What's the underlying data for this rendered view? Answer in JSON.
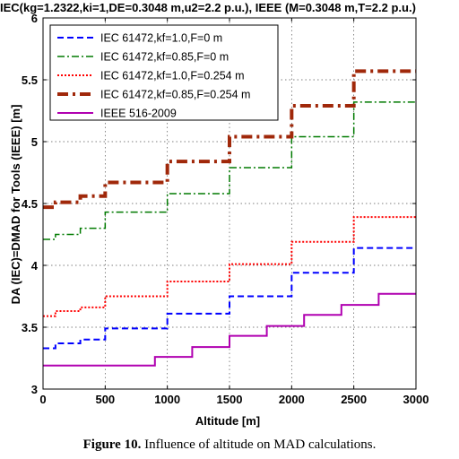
{
  "header": "IEC(kg=1.2322,ki=1,DE=0.3048 m,u2=2.2 p.u.), IEEE (M=0.3048 m,T=2.2 p.u.)",
  "caption": {
    "label": "Figure 10.",
    "text": "Influence of altitude on MAD calculations."
  },
  "chart_data": {
    "type": "line",
    "title": "IEC(kg=1.2322,ki=1,DE=0.3048 m,u2=2.2 p.u.), IEEE (M=0.3048 m,T=2.2 p.u.)",
    "xlabel": "Altitude [m]",
    "ylabel": "DA (IEC)=DMAD for Tools (IEEE) [m]",
    "xlim": [
      0,
      3000
    ],
    "ylim": [
      3,
      6
    ],
    "xticks": [
      0,
      500,
      1000,
      1500,
      2000,
      2500,
      3000
    ],
    "yticks": [
      3,
      3.5,
      4,
      4.5,
      5,
      5.5,
      6
    ],
    "ytick_labels": [
      "3",
      "3.5",
      "4",
      "4.5",
      "5",
      "5.5",
      "6"
    ],
    "grid": true,
    "legend_position": "top-left",
    "step": true,
    "series": [
      {
        "name": "IEC 61472,kf=1.0,F=0 m",
        "color": "#0000ff",
        "dash": "7,4",
        "width": 2,
        "x": [
          0,
          100,
          300,
          500,
          1000,
          1500,
          2000,
          2500,
          3000
        ],
        "y": [
          3.33,
          3.37,
          3.4,
          3.49,
          3.61,
          3.75,
          3.94,
          4.14,
          4.14
        ]
      },
      {
        "name": "IEC 61472,kf=0.85,F=0 m",
        "color": "#007a00",
        "dash": "8,3,2,3",
        "width": 1.5,
        "x": [
          0,
          100,
          300,
          500,
          1000,
          1500,
          2000,
          2500,
          3000
        ],
        "y": [
          4.21,
          4.25,
          4.3,
          4.43,
          4.58,
          4.79,
          5.04,
          5.32,
          5.32
        ]
      },
      {
        "name": "IEC 61472,kf=1.0,F=0.254 m",
        "color": "#ff0000",
        "dash": "2,2",
        "width": 2,
        "x": [
          0,
          100,
          300,
          500,
          1000,
          1500,
          2000,
          2500,
          3000
        ],
        "y": [
          3.59,
          3.63,
          3.66,
          3.75,
          3.87,
          4.01,
          4.19,
          4.39,
          4.39
        ]
      },
      {
        "name": "IEC 61472,kf=0.85,F=0.254 m",
        "color": "#a0280a",
        "dash": "12,5,3,5",
        "width": 4,
        "x": [
          0,
          100,
          300,
          500,
          1000,
          1500,
          2000,
          2500,
          3000
        ],
        "y": [
          4.47,
          4.51,
          4.56,
          4.67,
          4.84,
          5.04,
          5.29,
          5.57,
          5.57
        ]
      },
      {
        "name": "IEEE 516-2009",
        "color": "#b000b0",
        "dash": "",
        "width": 2,
        "x": [
          0,
          900,
          1200,
          1500,
          1800,
          2100,
          2400,
          2700,
          3000
        ],
        "y": [
          3.19,
          3.26,
          3.34,
          3.43,
          3.51,
          3.6,
          3.68,
          3.77,
          3.77
        ]
      }
    ]
  }
}
